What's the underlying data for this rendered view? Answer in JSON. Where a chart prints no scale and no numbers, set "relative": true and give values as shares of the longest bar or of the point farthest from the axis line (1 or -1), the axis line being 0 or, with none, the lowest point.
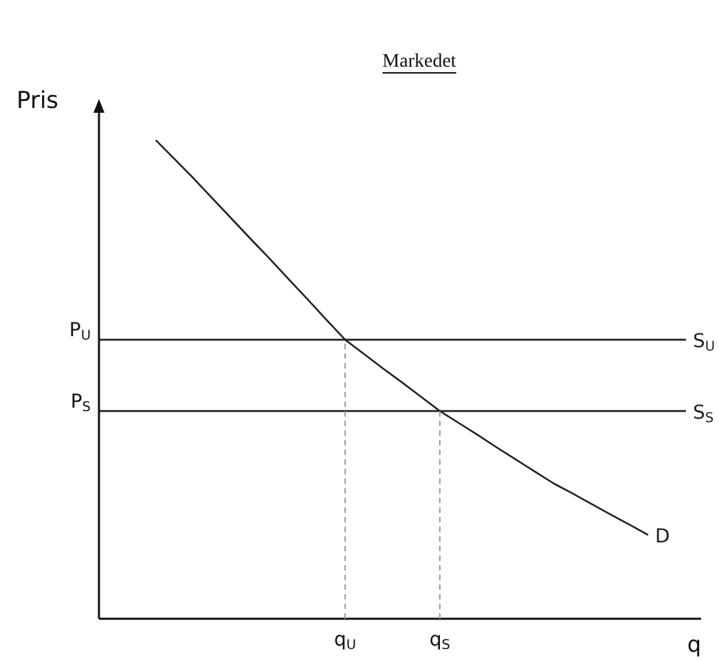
{
  "chart_data": {
    "type": "line",
    "title": "Markedet",
    "xlabel": "q",
    "ylabel": "Pris",
    "relative": true,
    "marker": "none",
    "line_style": "solid",
    "legend": false,
    "categories": [
      null,
      null,
      null,
      null,
      null,
      null,
      null,
      null,
      null,
      null,
      null,
      null,
      null,
      "q$_{U}$",
      null,
      null,
      null,
      null,
      "q$_{S}$",
      null,
      null,
      null,
      null,
      null,
      null,
      null,
      null,
      null,
      null,
      null,
      null,
      null
    ],
    "series": [
      {
        "name": "D",
        "color": "#222222",
        "values": [
          null,
          null,
          null,
          1,
          0.96,
          0.92,
          0.878,
          0.836,
          0.794,
          0.753,
          0.71,
          0.668,
          0.625,
          0.583,
          0.553,
          0.523,
          0.494,
          0.464,
          0.434,
          0.409,
          0.384,
          0.358,
          0.333,
          0.308,
          0.283,
          0.262,
          0.24,
          0.218,
          0.197,
          0.175,
          null,
          null
        ]
      },
      {
        "name": "S$_{U}$",
        "color": "#222222",
        "values": [
          0.583,
          0.583,
          0.583,
          0.583,
          0.583,
          0.583,
          0.583,
          0.583,
          0.583,
          0.583,
          0.583,
          0.583,
          0.583,
          0.583,
          0.583,
          0.583,
          0.583,
          0.583,
          0.583,
          0.583,
          0.583,
          0.583,
          0.583,
          0.583,
          0.583,
          0.583,
          0.583,
          0.583,
          0.583,
          0.583,
          0.583,
          0.583
        ]
      },
      {
        "name": "S$_{S}$",
        "color": "#222222",
        "values": [
          0.434,
          0.434,
          0.434,
          0.434,
          0.434,
          0.434,
          0.434,
          0.434,
          0.434,
          0.434,
          0.434,
          0.434,
          0.434,
          0.434,
          0.434,
          0.434,
          0.434,
          0.434,
          0.434,
          0.434,
          0.434,
          0.434,
          0.434,
          0.434,
          0.434,
          0.434,
          0.434,
          0.434,
          0.434,
          0.434,
          0.434,
          0.434
        ]
      }
    ],
    "ref_lines": [
      {
        "axis": "x",
        "value": "q$_{U}$",
        "color": "#999999",
        "line_style": "dashed"
      },
      {
        "axis": "x",
        "value": "q$_{S}$",
        "color": "#999999",
        "line_style": "dashed"
      }
    ],
    "annotations": [
      "P$_{U}$",
      "P$_{S}$"
    ]
  }
}
